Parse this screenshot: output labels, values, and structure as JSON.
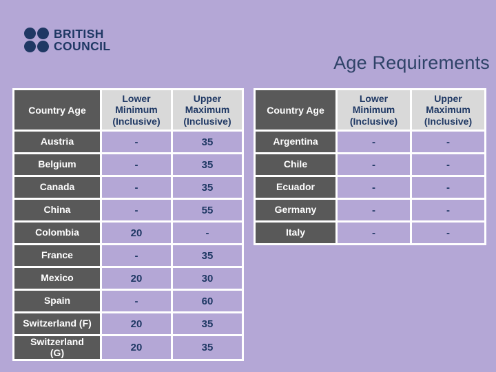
{
  "slide": {
    "title": "Age Requirements"
  },
  "logo": {
    "line1": "BRITISH",
    "line2": "COUNCIL"
  },
  "colors": {
    "background": "#b4a7d6",
    "navy_text": "#1f3864",
    "title_navy": "#2f4368",
    "country_cell_gray": "#595959",
    "header_gray": "#d9d9d9",
    "grid_white": "#ffffff"
  },
  "tables": [
    {
      "header": {
        "country": "Country Age",
        "lower": "Lower\nMinimum\n(Inclusive)",
        "upper": "Upper\nMaximum\n(Inclusive)"
      },
      "rows": [
        {
          "country": "Austria",
          "lower": "-",
          "upper": "35"
        },
        {
          "country": "Belgium",
          "lower": "-",
          "upper": "35"
        },
        {
          "country": "Canada",
          "lower": "-",
          "upper": "35"
        },
        {
          "country": "China",
          "lower": "-",
          "upper": "55"
        },
        {
          "country": "Colombia",
          "lower": "20",
          "upper": "-"
        },
        {
          "country": "France",
          "lower": "-",
          "upper": "35"
        },
        {
          "country": "Mexico",
          "lower": "20",
          "upper": "30"
        },
        {
          "country": "Spain",
          "lower": "-",
          "upper": "60"
        },
        {
          "country": "Switzerland (F)",
          "lower": "20",
          "upper": "35"
        },
        {
          "country": "Switzerland\n(G)",
          "lower": "20",
          "upper": "35"
        }
      ]
    },
    {
      "header": {
        "country": "Country Age",
        "lower": "Lower\nMinimum\n(Inclusive)",
        "upper": "Upper\nMaximum\n(Inclusive)"
      },
      "rows": [
        {
          "country": "Argentina",
          "lower": "-",
          "upper": "-"
        },
        {
          "country": "Chile",
          "lower": "-",
          "upper": "-"
        },
        {
          "country": "Ecuador",
          "lower": "-",
          "upper": "-"
        },
        {
          "country": "Germany",
          "lower": "-",
          "upper": "-"
        },
        {
          "country": "Italy",
          "lower": "-",
          "upper": "-"
        }
      ]
    }
  ]
}
